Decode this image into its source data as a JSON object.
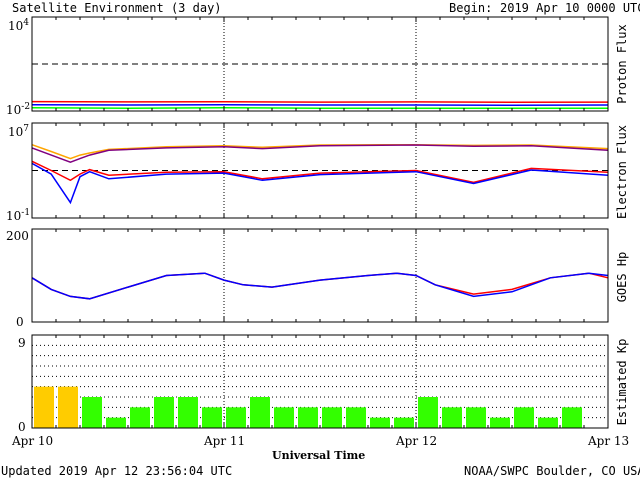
{
  "header": {
    "title": "Satellite Environment (3 day)",
    "begin_label": "Begin:",
    "begin_value": "2019 Apr 10 0000 UTC"
  },
  "footer": {
    "updated": "Updated 2019 Apr 12 23:56:04 UTC",
    "credit": "NOAA/SWPC Boulder, CO USA"
  },
  "colors": {
    "red": "#ff0000",
    "blue": "#0000ff",
    "green": "#00ff00",
    "orange": "#ffa500",
    "purple": "#800080",
    "kp_yellow": "#ffcc00",
    "kp_green": "#33ff00"
  },
  "chart_data": [
    {
      "id": "proton",
      "type": "line",
      "ylabel": "Proton Flux",
      "yscale": "log",
      "ylim": [
        0.01,
        10000
      ],
      "ytick_labels": [
        {
          "base": "10",
          "exp": "4"
        },
        {
          "base": "10",
          "exp": "-2"
        }
      ],
      "threshold": 10,
      "x": [
        0,
        0.5,
        1,
        1.5,
        2,
        2.5,
        3
      ],
      "series": [
        {
          "color": "#ff0000",
          "values": [
            0.04,
            0.038,
            0.039,
            0.037,
            0.038,
            0.036,
            0.037
          ]
        },
        {
          "color": "#0000ff",
          "values": [
            0.025,
            0.024,
            0.025,
            0.024,
            0.024,
            0.023,
            0.024
          ]
        },
        {
          "color": "#00ff00",
          "values": [
            0.016,
            0.015,
            0.016,
            0.015,
            0.015,
            0.015,
            0.015
          ]
        }
      ]
    },
    {
      "id": "electron",
      "type": "line",
      "ylabel": "Electron Flux",
      "yscale": "log",
      "ylim": [
        0.1,
        10000000
      ],
      "ytick_labels": [
        {
          "base": "10",
          "exp": "7"
        },
        {
          "base": "10",
          "exp": "-1"
        }
      ],
      "threshold": 1000,
      "x": [
        0,
        0.1,
        0.2,
        0.25,
        0.3,
        0.4,
        0.7,
        1.0,
        1.2,
        1.5,
        2.0,
        2.3,
        2.6,
        3.0
      ],
      "series": [
        {
          "color": "#ffa500",
          "values": [
            150000,
            40000,
            10000,
            20000,
            30000,
            60000,
            100000,
            120000,
            90000,
            140000,
            150000,
            130000,
            140000,
            70000
          ]
        },
        {
          "color": "#800080",
          "values": [
            80000,
            20000,
            5000,
            10000,
            20000,
            50000,
            80000,
            100000,
            70000,
            120000,
            140000,
            110000,
            120000,
            50000
          ]
        },
        {
          "color": "#ff0000",
          "values": [
            6000,
            1000,
            150,
            500,
            1200,
            400,
            700,
            800,
            200,
            600,
            1000,
            100,
            1500,
            700
          ]
        },
        {
          "color": "#0000ff",
          "values": [
            4000,
            500,
            2,
            300,
            800,
            200,
            500,
            600,
            150,
            450,
            800,
            80,
            1100,
            400
          ]
        }
      ]
    },
    {
      "id": "goes_hp",
      "type": "line",
      "ylabel": "GOES Hp",
      "ylim": [
        0,
        200
      ],
      "yticks": [
        0,
        200
      ],
      "x": [
        0,
        0.1,
        0.2,
        0.3,
        0.5,
        0.7,
        0.9,
        1.0,
        1.1,
        1.25,
        1.5,
        1.75,
        1.9,
        2.0,
        2.1,
        2.3,
        2.5,
        2.7,
        2.9,
        3.0
      ],
      "series": [
        {
          "color": "#ff0000",
          "values": [
            95,
            70,
            55,
            50,
            75,
            100,
            105,
            90,
            80,
            75,
            90,
            100,
            105,
            100,
            80,
            60,
            70,
            95,
            105,
            95
          ]
        },
        {
          "color": "#0000ff",
          "values": [
            95,
            70,
            55,
            50,
            75,
            100,
            105,
            90,
            80,
            75,
            90,
            100,
            105,
            100,
            80,
            55,
            65,
            95,
            105,
            100
          ]
        }
      ]
    },
    {
      "id": "kp",
      "type": "bar",
      "ylabel": "Estimated Kp",
      "ylim": [
        0,
        9
      ],
      "yticks": [
        0,
        9
      ],
      "bar_width_days": 0.125,
      "values": [
        4,
        4,
        3,
        1,
        2,
        3,
        3,
        2,
        2,
        3,
        2,
        2,
        2,
        2,
        1,
        1,
        3,
        2,
        2,
        1,
        2,
        1,
        2
      ],
      "yellow_threshold": 4
    }
  ],
  "x_axis": {
    "label": "Universal Time",
    "range_days": [
      0,
      3
    ],
    "ticks": [
      {
        "day": 0,
        "label": "Apr 10"
      },
      {
        "day": 1,
        "label": "Apr 11"
      },
      {
        "day": 2,
        "label": "Apr 12"
      },
      {
        "day": 3,
        "label": "Apr 13"
      }
    ]
  }
}
